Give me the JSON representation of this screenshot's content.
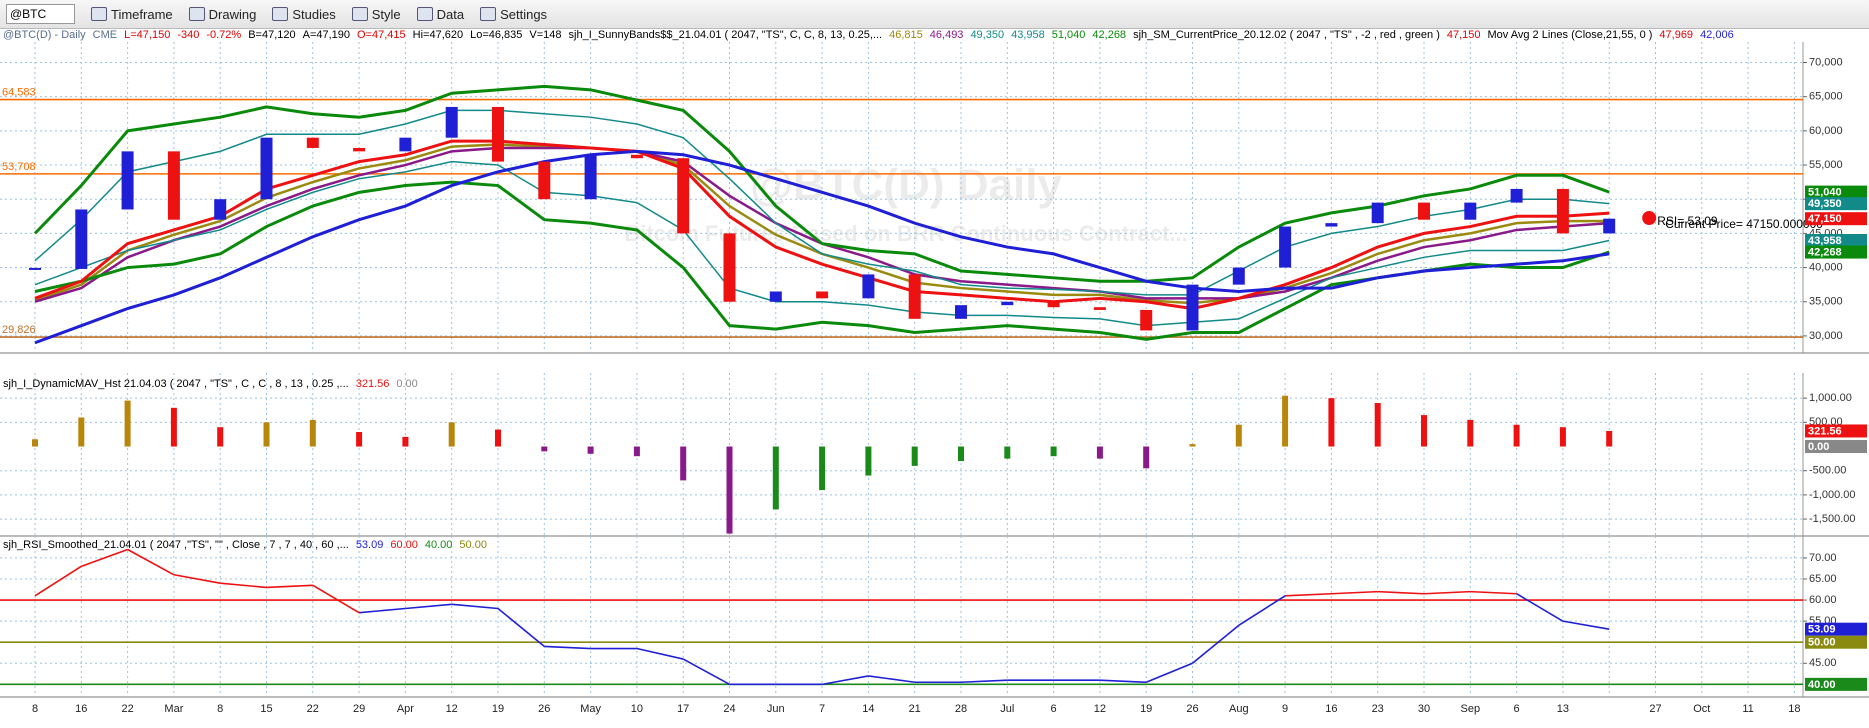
{
  "toolbar": {
    "symbol": "@BTC",
    "items": [
      "Timeframe",
      "Drawing",
      "Studies",
      "Style",
      "Data",
      "Settings"
    ]
  },
  "header": [
    {
      "text": "@BTC(D) - Daily",
      "color": "#5a6e8c"
    },
    {
      "text": "CME",
      "color": "#5a6e8c"
    },
    {
      "text": "L=47,150",
      "color": "#e00000"
    },
    {
      "text": "-340",
      "color": "#e00000"
    },
    {
      "text": "-0.72%",
      "color": "#e00000"
    },
    {
      "text": "B=47,120",
      "color": "#000000"
    },
    {
      "text": "A=47,190",
      "color": "#000000"
    },
    {
      "text": "O=47,415",
      "color": "#e00000"
    },
    {
      "text": "Hi=47,620",
      "color": "#000000"
    },
    {
      "text": "Lo=46,835",
      "color": "#000000"
    },
    {
      "text": "V=148",
      "color": "#000000"
    },
    {
      "text": "sjh_I_SunnyBands$$_21.04.01 ( 2047, \"TS\", C, C,  8,  13,  0.25,...",
      "color": "#000000"
    },
    {
      "text": "46,815",
      "color": "#9a8a10"
    },
    {
      "text": "46,493",
      "color": "#8a1a8a"
    },
    {
      "text": "49,350",
      "color": "#138a8a"
    },
    {
      "text": "43,958",
      "color": "#138a8a"
    },
    {
      "text": "51,040",
      "color": "#0a8a0a"
    },
    {
      "text": "42,268",
      "color": "#0a8a0a"
    },
    {
      "text": "sjh_SM_CurrentPrice_20.12.02 ( 2047 , \"TS\" , -2 , red , green )",
      "color": "#000000"
    },
    {
      "text": "47,150",
      "color": "#e00000"
    },
    {
      "text": "Mov Avg 2 Lines (Close,21,55, 0 )",
      "color": "#000000"
    },
    {
      "text": "47,969",
      "color": "#e00000"
    },
    {
      "text": "42,006",
      "color": "#1f1fd6"
    }
  ],
  "chart_data": [
    {
      "type": "candlestick",
      "title": "@BTC(D) Daily",
      "subtitle": "Bitcoin Futures Based on BRR Continuous Contract...",
      "categories": [
        "8",
        "16",
        "22",
        "Mar",
        "8",
        "15",
        "22",
        "29",
        "Apr",
        "12",
        "19",
        "26",
        "May",
        "10",
        "17",
        "24",
        "Jun",
        "7",
        "14",
        "21",
        "28",
        "Jul",
        "6",
        "12",
        "19",
        "26",
        "Aug",
        "9",
        "16",
        "23",
        "30",
        "Sep",
        "6",
        "13",
        null,
        "27",
        "Oct",
        "11",
        "18"
      ],
      "values": [
        39800,
        48500,
        57000,
        47000,
        50000,
        59000,
        57500,
        57000,
        59000,
        63500,
        55500,
        50000,
        56500,
        56000,
        45000,
        35000,
        36500,
        35500,
        39000,
        32500,
        34500,
        35000,
        34200,
        33800,
        30800,
        37500,
        40000,
        46000,
        46500,
        49500,
        47000,
        49500,
        51500,
        45000,
        47150,
        null,
        null,
        null,
        null
      ],
      "up_color": "#1f1fd6",
      "down_color": "#ee1111",
      "lines": [
        {
          "color": "#9a8a10",
          "width": 2.5,
          "values": [
            35200,
            37500,
            42500,
            44800,
            46800,
            50200,
            52500,
            54500,
            55700,
            57700,
            58000,
            57700,
            57500,
            57000,
            55000,
            49000,
            44800,
            42000,
            40000,
            37800,
            37000,
            36500,
            36000,
            36000,
            35200,
            34800,
            35500,
            37000,
            39200,
            42000,
            44000,
            45000,
            46500,
            46800,
            46815,
            null,
            null,
            null,
            null
          ]
        },
        {
          "color": "#8a1a8a",
          "width": 2.5,
          "values": [
            35000,
            37000,
            41500,
            44000,
            46000,
            49000,
            51500,
            53500,
            55000,
            57000,
            57500,
            57500,
            57500,
            57000,
            55500,
            50500,
            46500,
            43500,
            41500,
            39000,
            38000,
            37500,
            37000,
            36500,
            35500,
            35500,
            35500,
            36500,
            38500,
            41000,
            43000,
            44000,
            45500,
            46000,
            46493,
            null,
            null,
            null,
            null
          ]
        },
        {
          "color": "#138a8a",
          "width": 1.5,
          "values": [
            41000,
            47000,
            54000,
            55500,
            57000,
            59500,
            59500,
            59500,
            61000,
            63000,
            63000,
            62500,
            62000,
            61000,
            59000,
            53000,
            46500,
            42000,
            40500,
            39500,
            37500,
            37000,
            36800,
            36500,
            36000,
            36000,
            39500,
            43000,
            45000,
            46000,
            47500,
            48500,
            50000,
            50000,
            49350,
            null,
            null,
            null,
            null
          ]
        },
        {
          "color": "#138a8a",
          "width": 1.5,
          "values": [
            37500,
            40000,
            42500,
            44000,
            45500,
            48500,
            51000,
            53000,
            54000,
            55500,
            55000,
            51000,
            50500,
            49500,
            45500,
            37000,
            35000,
            35000,
            34500,
            33500,
            33000,
            33000,
            32700,
            32500,
            31500,
            32000,
            32500,
            35500,
            38500,
            40000,
            41500,
            42500,
            42500,
            42500,
            43958,
            null,
            null,
            null,
            null
          ]
        },
        {
          "color": "#0a8a0a",
          "width": 3,
          "values": [
            45000,
            52000,
            60000,
            61000,
            62000,
            63500,
            62500,
            62000,
            63000,
            65500,
            66000,
            66500,
            66000,
            64500,
            63000,
            57000,
            49000,
            43500,
            42500,
            42000,
            39500,
            39000,
            38500,
            38000,
            38000,
            38500,
            43000,
            46500,
            48000,
            49000,
            50500,
            51500,
            53500,
            53500,
            51040,
            null,
            null,
            null,
            null
          ]
        },
        {
          "color": "#0a8a0a",
          "width": 3,
          "values": [
            36500,
            38000,
            40000,
            40500,
            42000,
            46000,
            49000,
            51000,
            52000,
            52500,
            52000,
            47000,
            46500,
            45500,
            40000,
            31500,
            31000,
            32000,
            31500,
            30500,
            31000,
            31500,
            31000,
            30500,
            29500,
            30500,
            30500,
            34000,
            37500,
            38500,
            39500,
            40500,
            40000,
            40000,
            42268,
            null,
            null,
            null,
            null
          ]
        },
        {
          "color": "#ee1111",
          "width": 3,
          "values": [
            35500,
            38000,
            43500,
            45500,
            47500,
            51500,
            53500,
            55500,
            56500,
            58500,
            58500,
            58000,
            57500,
            57000,
            54500,
            47500,
            43000,
            40500,
            38500,
            36500,
            36000,
            35500,
            35000,
            35500,
            35000,
            34000,
            35500,
            37500,
            40000,
            43000,
            45000,
            46000,
            47500,
            47500,
            47969,
            null,
            null,
            null,
            null
          ]
        },
        {
          "color": "#1f1fd6",
          "width": 3,
          "values": [
            29000,
            31500,
            34000,
            36000,
            38500,
            41500,
            44500,
            47000,
            49000,
            52000,
            54000,
            55500,
            56500,
            57000,
            56500,
            55000,
            53000,
            51000,
            49000,
            46500,
            44500,
            43000,
            42000,
            40000,
            38000,
            37000,
            36500,
            37000,
            37000,
            38500,
            39500,
            40000,
            40500,
            41000,
            42006,
            null,
            null,
            null,
            null
          ]
        }
      ],
      "levels": [
        {
          "value": 64583,
          "label": "64,583",
          "color": "#ff6a00"
        },
        {
          "value": 53708,
          "label": "53,708",
          "color": "#ff6a00"
        },
        {
          "value": 29826,
          "label": "29,826",
          "color": "#c0702a"
        }
      ],
      "price_tags": [
        {
          "value": 51040,
          "label": "51,040",
          "color": "#0a8a0a"
        },
        {
          "value": 49350,
          "label": "49,350",
          "color": "#138a8a"
        },
        {
          "value": 47150,
          "label": "47,150",
          "color": "#ee1111"
        },
        {
          "value": 43958,
          "label": "43,958",
          "color": "#138a8a"
        },
        {
          "value": 42268,
          "label": "42,268",
          "color": "#0a8a0a"
        }
      ],
      "annotations": [
        "RSI= 53.09",
        "Current Price= 47150.000000"
      ],
      "ylim": [
        27500,
        73000
      ],
      "yticks": [
        {
          "value": 30000,
          "label": "30,000"
        },
        {
          "value": 35000,
          "label": "35,000"
        },
        {
          "value": 40000,
          "label": "40,000"
        },
        {
          "value": 45000,
          "label": "45,000"
        },
        {
          "value": 50000,
          "label": "50,000"
        },
        {
          "value": 55000,
          "label": "55,000"
        },
        {
          "value": 60000,
          "label": "60,000"
        },
        {
          "value": 65000,
          "label": "65,000"
        },
        {
          "value": 70000,
          "label": "70,000"
        }
      ],
      "grid": true
    },
    {
      "type": "bar",
      "title": "sjh_I_DynamicMAV_Hst 21.04.03 ( 2047 , \"TS\" , C , C ,  8 , 13 , 0.25 ,...",
      "legend": [
        {
          "text": "321.56",
          "color": "#ee1111"
        },
        {
          "text": "0.00",
          "color": "#888888"
        }
      ],
      "values": [
        150,
        600,
        950,
        800,
        400,
        500,
        550,
        300,
        200,
        500,
        350,
        -100,
        -150,
        -200,
        -700,
        -1800,
        -1300,
        -900,
        -600,
        -400,
        -300,
        -250,
        -200,
        -250,
        -450,
        50,
        450,
        1050,
        1000,
        900,
        650,
        550,
        450,
        400,
        321.56,
        null,
        null,
        null,
        null
      ],
      "pos_rising_color": "#b8860b",
      "pos_falling_color": "#ee1111",
      "neg_falling_color": "#8a1a8a",
      "neg_rising_color": "#1a8a1a",
      "price_tags": [
        {
          "value": 321.56,
          "label": "321.56",
          "color": "#ee1111"
        },
        {
          "value": 0,
          "label": "0.00",
          "color": "#888888"
        }
      ],
      "ylim": [
        -1850,
        1520
      ],
      "yticks": [
        {
          "value": 1000,
          "label": "1,000.00"
        },
        {
          "value": 500,
          "label": "500.00"
        },
        {
          "value": -500,
          "label": "-500.00"
        },
        {
          "value": -1000,
          "label": "-1,000.00"
        },
        {
          "value": -1500,
          "label": "-1,500.00"
        }
      ],
      "grid": true
    },
    {
      "type": "line",
      "title": "sjh_RSI_Smoothed_21.04.01 ( 2047 ,\"TS\", \"\" , Close , 7 , 7 , 40 , 60 ,...",
      "legend": [
        {
          "text": "53.09",
          "color": "#1f1fd6"
        },
        {
          "text": "60.00",
          "color": "#ee1111"
        },
        {
          "text": "40.00",
          "color": "#1a8a1a"
        },
        {
          "text": "50.00",
          "color": "#8a8a10"
        }
      ],
      "values": [
        61,
        68,
        72,
        66,
        64,
        63,
        63.5,
        57,
        58,
        59,
        58,
        49,
        48.5,
        48.5,
        46,
        40,
        40,
        40,
        42,
        40.5,
        40.5,
        41,
        41,
        41,
        40.5,
        45,
        54,
        61,
        61.5,
        62,
        61.5,
        62,
        61.5,
        55,
        53.09,
        null,
        null,
        null,
        null
      ],
      "upper": 60,
      "lower": 40,
      "above_color": "#ee1111",
      "middle_color": "#1f1fd6",
      "below_color": "#33dd33",
      "levels": [
        {
          "value": 60,
          "color": "#ee1111"
        },
        {
          "value": 50,
          "color": "#8a8a10"
        },
        {
          "value": 40,
          "color": "#1a8a1a"
        }
      ],
      "price_tags": [
        {
          "value": 53.09,
          "label": "53.09",
          "color": "#1f1fd6"
        },
        {
          "value": 50,
          "label": "50.00",
          "color": "#8a8a10"
        },
        {
          "value": 40,
          "label": "40.00",
          "color": "#1a8a1a"
        }
      ],
      "ylim": [
        37,
        75.2
      ],
      "yticks": [
        {
          "value": 70,
          "label": "70.00"
        },
        {
          "value": 65,
          "label": "65.00"
        },
        {
          "value": 60,
          "label": "60.00"
        },
        {
          "value": 55,
          "label": "55.00"
        },
        {
          "value": 45,
          "label": "45.00"
        }
      ],
      "grid": true
    }
  ]
}
